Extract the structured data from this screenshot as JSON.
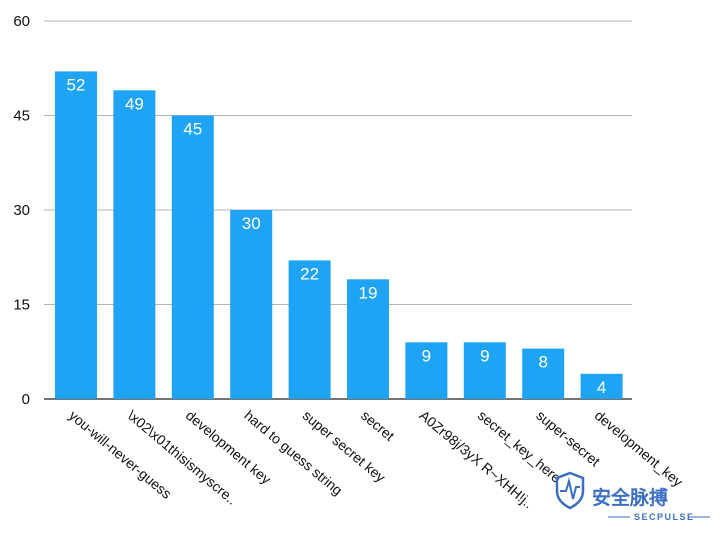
{
  "chart_data": {
    "type": "bar",
    "title": "",
    "xlabel": "",
    "ylabel": "",
    "categories": [
      "you-will-never-guess",
      "\\x02\\x01thisismyscre..",
      "development key",
      "hard to guess string",
      "super secret key",
      "secret",
      "A0Zr98j/3yX R~XHH!j..",
      "secret_key_here",
      "super-secret",
      "development_key"
    ],
    "values": [
      52,
      49,
      45,
      30,
      22,
      19,
      9,
      9,
      8,
      4
    ],
    "ylim": [
      0,
      60
    ],
    "yticks": [
      0,
      15,
      30,
      45,
      60
    ],
    "grid": true,
    "legend": "none",
    "bar_color": "#1fa3f5",
    "grid_color": "#b5b5b5",
    "value_label_color": "#ffffff"
  },
  "watermark": {
    "text": "安全脉搏",
    "subtext": "SECPULSE",
    "color": "#3b6fc4"
  }
}
